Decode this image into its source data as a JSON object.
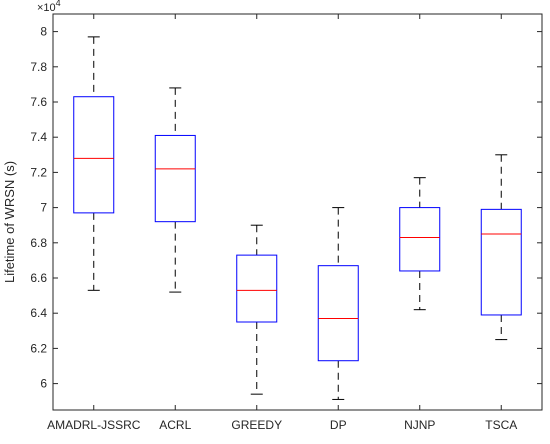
{
  "chart_data": {
    "type": "boxplot",
    "title": "",
    "xlabel": "",
    "ylabel": "Lifetime of WRSN (s)",
    "y_exponent_label": "×10",
    "y_exponent_power": "4",
    "ylim": [
      5.85,
      8.1
    ],
    "yticks": [
      6,
      6.2,
      6.4,
      6.6,
      6.8,
      7,
      7.2,
      7.4,
      7.6,
      7.8,
      8
    ],
    "ytick_labels": [
      "6",
      "6.2",
      "6.4",
      "6.6",
      "6.8",
      "7",
      "7.2",
      "7.4",
      "7.6",
      "7.8",
      "8"
    ],
    "grid": false,
    "colors": {
      "box": "#0000ff",
      "median": "#ff0000",
      "whisker": "#000000",
      "axis": "#262626"
    },
    "categories": [
      "AMADRL-JSSRC",
      "ACRL",
      "GREEDY",
      "DP",
      "NJNP",
      "TSCA"
    ],
    "boxes": [
      {
        "min": 6.53,
        "q1": 6.97,
        "median": 7.28,
        "q3": 7.63,
        "max": 7.97
      },
      {
        "min": 6.52,
        "q1": 6.92,
        "median": 7.22,
        "q3": 7.41,
        "max": 7.68
      },
      {
        "min": 5.94,
        "q1": 6.35,
        "median": 6.53,
        "q3": 6.73,
        "max": 6.9
      },
      {
        "min": 5.91,
        "q1": 6.13,
        "median": 6.37,
        "q3": 6.67,
        "max": 7.0
      },
      {
        "min": 6.42,
        "q1": 6.64,
        "median": 6.83,
        "q3": 7.0,
        "max": 7.17
      },
      {
        "min": 6.25,
        "q1": 6.39,
        "median": 6.85,
        "q3": 6.99,
        "max": 7.3
      }
    ]
  }
}
